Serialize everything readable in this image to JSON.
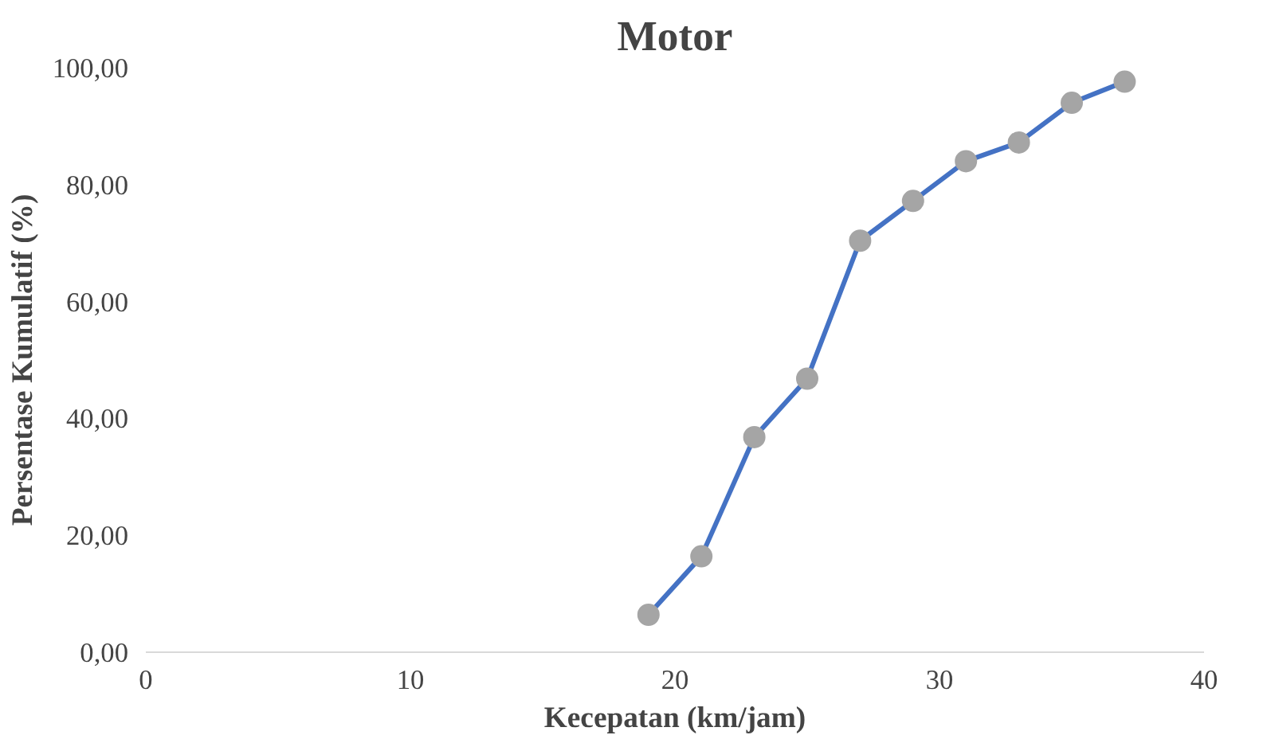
{
  "chart_data": {
    "type": "line",
    "title": "Motor",
    "xlabel": "Kecepatan (km/jam)",
    "ylabel": "Persentase Kumulatif (%)",
    "x": [
      19,
      21,
      23,
      25,
      27,
      29,
      31,
      33,
      35,
      37
    ],
    "series": [
      {
        "color": "#4472c4",
        "values": [
          6.4,
          16.4,
          36.8,
          46.8,
          70.4,
          77.2,
          84,
          87.2,
          94,
          97.6
        ]
      }
    ],
    "xlim": [
      0,
      40
    ],
    "xticks": [
      0,
      10,
      20,
      30,
      40
    ],
    "ylim": [
      0,
      100
    ],
    "yticks": [
      {
        "value": 0,
        "label": "0,00"
      },
      {
        "value": 20,
        "label": "20,00"
      },
      {
        "value": 40,
        "label": "40,00"
      },
      {
        "value": 60,
        "label": "60,00"
      },
      {
        "value": 80,
        "label": "80,00"
      },
      {
        "value": 100,
        "label": "100,00"
      }
    ],
    "grid": false,
    "marker": "circle",
    "line_style": "solid"
  }
}
